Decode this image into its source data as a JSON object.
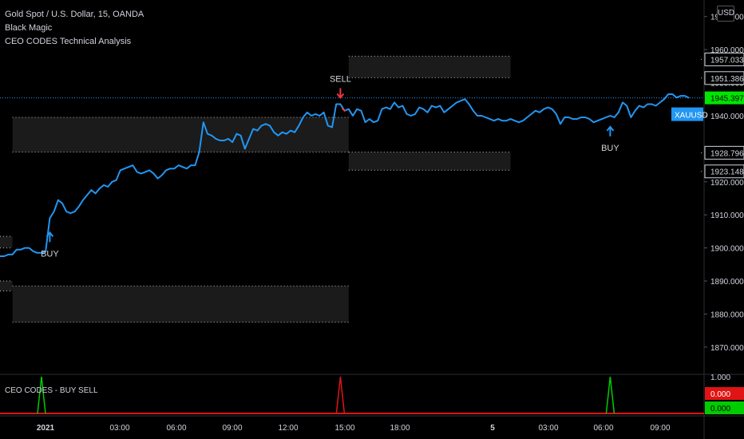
{
  "legend": {
    "symbol_line": "Gold Spot / U.S. Dollar, 15, OANDA",
    "indicator_1": "Black Magic",
    "indicator_2": "CEO CODES Technical Analysis"
  },
  "currency_button": "USD",
  "sub_pane_title": "CEO CODES - BUY SELL",
  "colors": {
    "price_line": "#2196f3",
    "buy_arrow": "#2196f3",
    "sell_arrow": "#f23645",
    "zone_fill": "#1e1e1e",
    "current_price_tag": "#00e600",
    "symbol_tag": "#2196f3",
    "sell_signal": "#e01414",
    "buy_signal": "#00cc00"
  },
  "chart_data": [
    {
      "type": "line",
      "series": [
        {
          "name": "XAUUSD",
          "x": [
            0,
            1,
            2,
            3,
            4,
            5,
            6,
            7,
            8,
            9,
            10,
            11,
            12,
            13,
            14,
            15,
            16,
            17,
            18,
            19,
            20,
            21,
            22,
            23,
            24,
            25,
            26,
            27,
            28,
            29,
            30,
            31,
            32,
            33,
            34,
            35,
            36,
            37,
            38,
            39,
            40,
            41,
            42,
            43,
            44,
            45,
            46,
            47,
            48,
            49,
            50,
            51,
            52,
            53,
            54,
            55,
            56,
            57,
            58,
            59,
            60,
            61,
            62,
            63,
            64,
            65,
            66,
            67,
            68,
            69,
            70,
            71,
            72,
            73,
            74,
            75,
            76,
            77,
            78,
            79,
            80,
            81,
            82,
            83,
            84,
            85,
            86,
            87,
            88,
            89,
            90,
            91,
            92,
            93,
            94,
            95,
            96,
            97,
            98,
            99,
            100,
            101,
            102,
            103,
            104,
            105,
            106,
            107,
            108,
            109,
            110,
            111,
            112,
            113,
            114,
            115,
            116,
            117,
            118,
            119,
            120,
            121,
            122,
            123,
            124,
            125,
            126,
            127,
            128,
            129,
            130,
            131,
            132,
            133,
            134,
            135,
            136,
            137,
            138,
            139,
            140,
            141,
            142,
            143,
            144,
            145,
            146,
            147,
            148,
            149,
            150,
            151,
            152,
            153,
            154,
            155,
            156,
            157,
            158,
            159,
            160,
            161,
            162,
            163,
            164,
            165,
            166
          ],
          "values": [
            1897.5,
            1897.5,
            1898.0,
            1898.0,
            1899.5,
            1899.5,
            1900.0,
            1900.0,
            1899.0,
            1898.5,
            1898.5,
            1899.0,
            1909.0,
            1911.0,
            1914.5,
            1913.5,
            1911.0,
            1910.5,
            1911.0,
            1912.5,
            1914.5,
            1916.0,
            1917.5,
            1916.5,
            1918.0,
            1919.0,
            1918.5,
            1920.0,
            1920.5,
            1923.5,
            1924.0,
            1924.5,
            1925.0,
            1923.0,
            1922.5,
            1923.0,
            1923.5,
            1922.5,
            1921.0,
            1922.0,
            1923.5,
            1924.0,
            1924.0,
            1925.0,
            1924.5,
            1924.0,
            1925.0,
            1925.0,
            1929.0,
            1938.0,
            1934.5,
            1934.0,
            1933.0,
            1932.5,
            1932.5,
            1933.0,
            1932.0,
            1934.5,
            1934.0,
            1930.0,
            1933.0,
            1936.0,
            1935.5,
            1937.0,
            1937.5,
            1937.0,
            1935.0,
            1934.0,
            1935.0,
            1934.5,
            1935.5,
            1935.0,
            1937.0,
            1939.5,
            1941.0,
            1940.0,
            1940.5,
            1940.0,
            1941.0,
            1937.0,
            1936.5,
            1943.5,
            1943.5,
            1941.5,
            1942.0,
            1940.0,
            1942.0,
            1941.5,
            1938.0,
            1939.0,
            1938.0,
            1938.5,
            1942.0,
            1942.5,
            1942.0,
            1944.0,
            1942.5,
            1943.0,
            1940.5,
            1940.0,
            1940.5,
            1942.5,
            1942.0,
            1941.0,
            1943.0,
            1942.5,
            1943.0,
            1941.0,
            1942.0,
            1943.0,
            1944.0,
            1944.5,
            1945.0,
            1943.5,
            1941.5,
            1940.0,
            1940.0,
            1939.5,
            1939.0,
            1938.5,
            1939.0,
            1938.5,
            1938.5,
            1939.0,
            1938.5,
            1938.0,
            1938.5,
            1939.5,
            1940.5,
            1941.5,
            1941.0,
            1942.0,
            1942.5,
            1942.0,
            1940.5,
            1937.5,
            1939.5,
            1939.5,
            1939.0,
            1939.0,
            1939.5,
            1939.5,
            1939.0,
            1938.0,
            1938.5,
            1939.0,
            1939.5,
            1940.0,
            1939.5,
            1941.0,
            1944.0,
            1943.0,
            1939.5,
            1941.5,
            1943.0,
            1942.5,
            1943.5,
            1943.5,
            1943.0,
            1944.0,
            1945.0,
            1946.5,
            1946.5,
            1945.5,
            1946.0,
            1946.0,
            1945.4
          ]
        }
      ],
      "ylim": [
        1862,
        1975
      ],
      "y_ticks": [
        "1870.000",
        "1880.000",
        "1890.000",
        "1900.000",
        "1910.000",
        "1920.000",
        "1930.000",
        "1940.000",
        "1950.000",
        "1960.000",
        "1970.000"
      ],
      "x_tick_labels": [
        "2021",
        "03:00",
        "06:00",
        "09:00",
        "12:00",
        "15:00",
        "18:00",
        "5",
        "03:00",
        "06:00",
        "09:00"
      ],
      "price_labels": [
        {
          "value": 1957.033,
          "label": "1957.033"
        },
        {
          "value": 1951.386,
          "label": "1951.386"
        },
        {
          "value": 1945.397,
          "label": "1945.397"
        },
        {
          "value": 1928.796,
          "label": "1928.796"
        },
        {
          "value": 1923.148,
          "label": "1923.148"
        }
      ],
      "current_price": 1945.397,
      "symbol_tag": "XAUUSD",
      "zones": [
        {
          "x_start": -1,
          "x_end": 3,
          "top": 1903.5,
          "bottom": 1900.0
        },
        {
          "x_start": -1,
          "x_end": 3,
          "top": 1890.0,
          "bottom": 1887.0
        },
        {
          "x_start": 3,
          "x_end": 84,
          "top": 1939.5,
          "bottom": 1929.0
        },
        {
          "x_start": 3,
          "x_end": 84,
          "top": 1888.5,
          "bottom": 1877.5
        },
        {
          "x_start": 84,
          "x_end": 123,
          "top": 1958.0,
          "bottom": 1951.5
        },
        {
          "x_start": 84,
          "x_end": 123,
          "top": 1929.0,
          "bottom": 1923.5
        }
      ],
      "annotations": [
        {
          "text": "BUY",
          "x": 12,
          "price": 1909.0,
          "side": "below",
          "color": "buy_arrow"
        },
        {
          "text": "SELL",
          "x": 82,
          "price": 1943.5,
          "side": "above",
          "color": "sell_arrow"
        },
        {
          "text": "BUY",
          "x": 147,
          "price": 1941.0,
          "side": "below",
          "color": "buy_arrow"
        }
      ],
      "grid": false
    },
    {
      "type": "line",
      "title": "CEO CODES - BUY SELL",
      "ylim": [
        0,
        1
      ],
      "y_ticks": [
        "1.000"
      ],
      "spikes": [
        {
          "x": 10,
          "value": 1,
          "color": "buy_signal"
        },
        {
          "x": 82,
          "value": 1,
          "color": "sell_signal"
        },
        {
          "x": 147,
          "value": 1,
          "color": "buy_signal"
        }
      ],
      "value_labels": [
        {
          "label": "0.000",
          "color": "sell_signal"
        },
        {
          "label": "0.000",
          "color": "buy_signal"
        }
      ]
    }
  ]
}
